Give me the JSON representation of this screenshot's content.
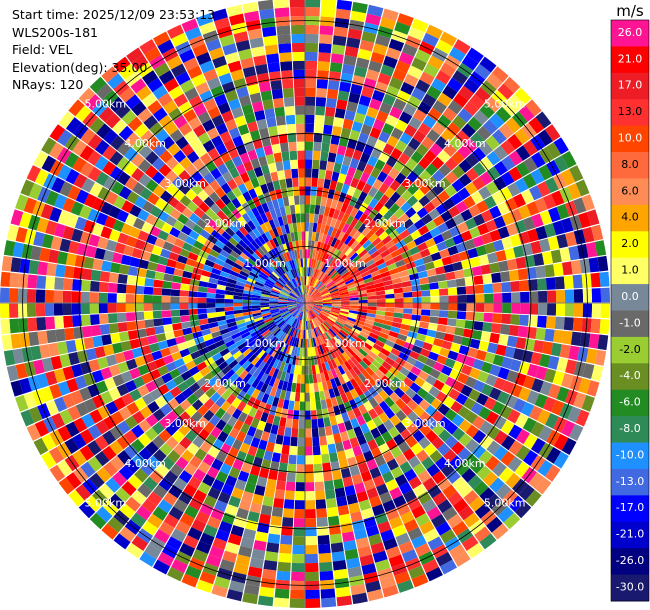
{
  "info": {
    "start_time": "Start time: 2025/12/09 23:53:13",
    "instrument": "WLS200s-181",
    "field": "Field: VEL",
    "elevation": "Elevation(deg): 35.00",
    "nrays": "NRays: 120"
  },
  "chart_data": {
    "type": "heatmap",
    "projection": "polar-ppi",
    "rays": 120,
    "range_rings_km": [
      {
        "value": 1.0,
        "label": "1.00km"
      },
      {
        "value": 2.0,
        "label": "2.00km"
      },
      {
        "value": 3.0,
        "label": "3.00km"
      },
      {
        "value": 4.0,
        "label": "4.00km"
      },
      {
        "value": 5.0,
        "label": "5.00km"
      }
    ],
    "max_range_km": 5.4,
    "colorbar": {
      "unit": "m/s",
      "boundaries": [
        "26.0",
        "21.0",
        "17.0",
        "13.0",
        "10.0",
        "8.0",
        "6.0",
        "4.0",
        "2.0",
        "1.0",
        "0.0",
        "-1.0",
        "-2.0",
        "-4.0",
        "-6.0",
        "-8.0",
        "-10.0",
        "-13.0",
        "-17.0",
        "-21.0",
        "-26.0",
        "-30.0"
      ],
      "colors": [
        "#ff1493",
        "#ff0000",
        "#ee1c25",
        "#ff3030",
        "#ff4500",
        "#ff6a3d",
        "#ff8c55",
        "#ffa500",
        "#ffff00",
        "#ffff66",
        "#778899",
        "#696969",
        "#9acd32",
        "#6b8e23",
        "#228b22",
        "#2e8b57",
        "#1e90ff",
        "#4169e1",
        "#0000ff",
        "#0000cd",
        "#000080",
        "#191970"
      ]
    }
  }
}
